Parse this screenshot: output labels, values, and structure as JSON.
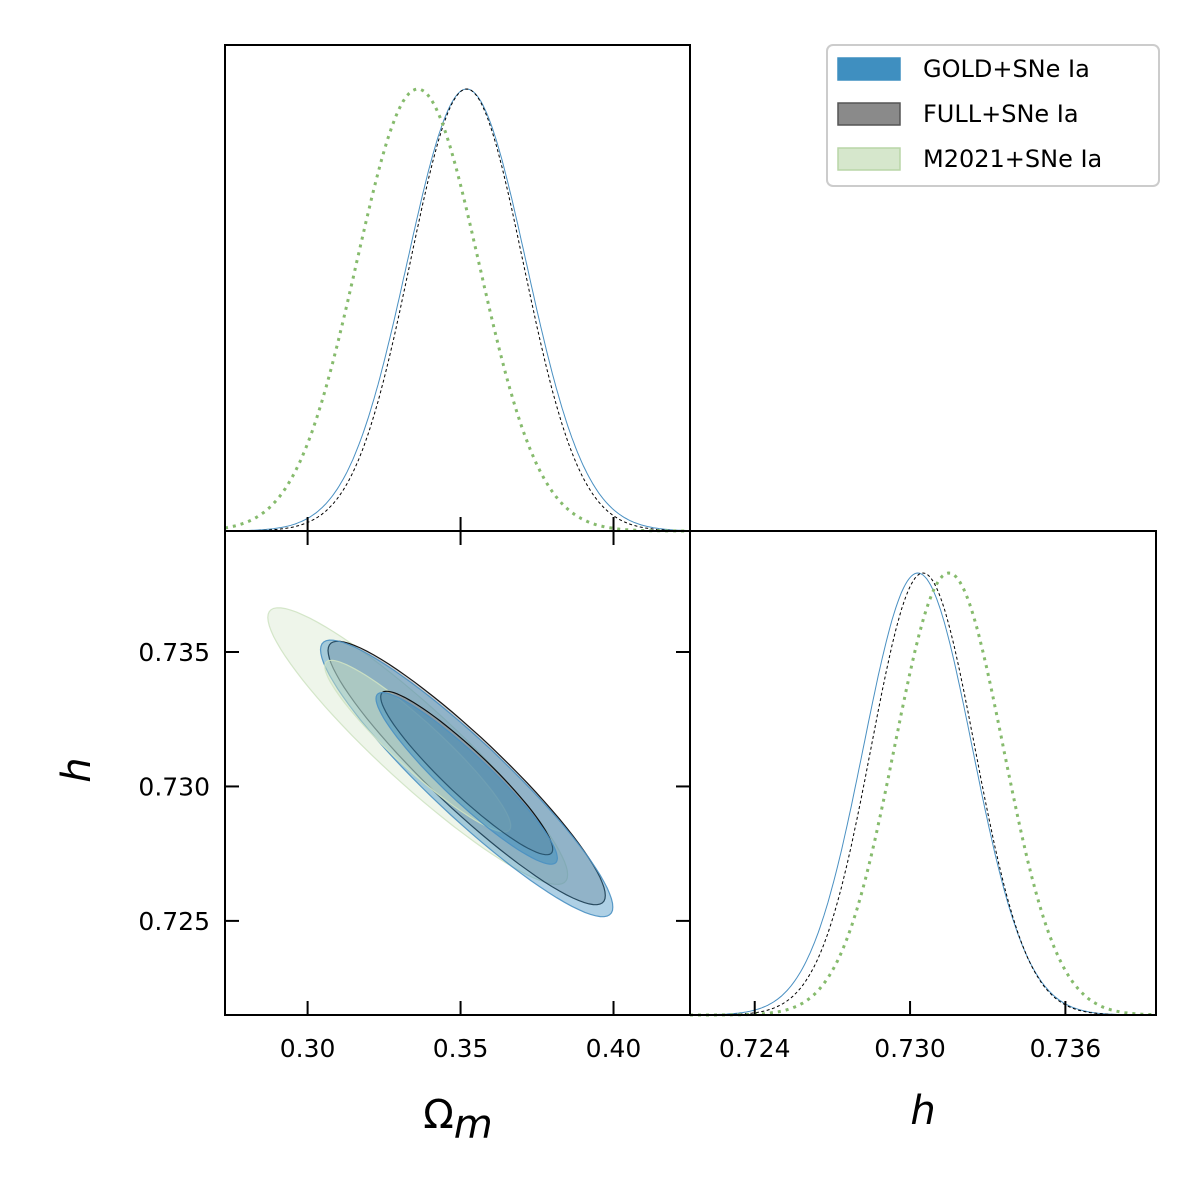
{
  "chart_data": {
    "type": "corner",
    "parameters": [
      "Omega_m",
      "h"
    ],
    "axis_labels": {
      "omega_m": "Ω",
      "omega_m_sub": "m",
      "h": "h"
    },
    "ranges": {
      "omega_m": [
        0.273,
        0.425
      ],
      "h": [
        0.7215,
        0.7395
      ]
    },
    "ticks": {
      "omega_m": [
        {
          "v": 0.3,
          "label": "0.30"
        },
        {
          "v": 0.35,
          "label": "0.35"
        },
        {
          "v": 0.4,
          "label": "0.40"
        }
      ],
      "h_left": [
        {
          "v": 0.725,
          "label": "0.725"
        },
        {
          "v": 0.73,
          "label": "0.730"
        },
        {
          "v": 0.735,
          "label": "0.735"
        }
      ],
      "h_bottom": [
        {
          "v": 0.724,
          "label": "0.724"
        },
        {
          "v": 0.73,
          "label": "0.730"
        },
        {
          "v": 0.736,
          "label": "0.736"
        }
      ]
    },
    "series": [
      {
        "name": "GOLD+SNe Ia",
        "line_color": "#4a90c2",
        "fill_color": "#3f8fc0",
        "style": "solid",
        "omega_m": {
          "mean": 0.352,
          "sigma": 0.0195
        },
        "h": {
          "mean": 0.7303,
          "sigma": 0.0021
        },
        "corr": -0.93
      },
      {
        "name": "FULL+SNe Ia",
        "line_color": "#000000",
        "fill_color": "#8a8a8a",
        "style": "dashed",
        "omega_m": {
          "mean": 0.352,
          "sigma": 0.0185
        },
        "h": {
          "mean": 0.7305,
          "sigma": 0.002
        },
        "corr": -0.93
      },
      {
        "name": "M2021+SNe Ia",
        "line_color": "#86bb6d",
        "fill_color": "#cfe3c3",
        "style": "dotted",
        "omega_m": {
          "mean": 0.336,
          "sigma": 0.02
        },
        "h": {
          "mean": 0.7315,
          "sigma": 0.0021
        },
        "corr": -0.93
      }
    ]
  }
}
